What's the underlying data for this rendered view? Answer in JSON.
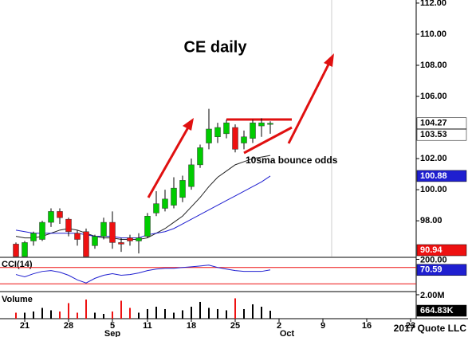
{
  "chart_data": {
    "type": "candlestick",
    "title": "CE daily",
    "annotation": "10sma bounce odds",
    "annotation_color": "#8b1a1a",
    "copyright": "2017 Quote LLC",
    "categories": [
      null,
      "21",
      null,
      null,
      null,
      null,
      "28",
      null,
      null,
      null,
      null,
      "5",
      null,
      null,
      null,
      "11",
      null,
      null,
      null,
      null,
      "18",
      null,
      null,
      null,
      null,
      "25",
      null,
      null,
      null,
      null,
      "2",
      null,
      null,
      null,
      null,
      "9",
      null,
      null,
      null,
      null,
      "16",
      null,
      null,
      null,
      null,
      "23"
    ],
    "month_labels": [
      "Sep",
      "Oct"
    ],
    "open": [
      96.5,
      95.7,
      96.7,
      96.8,
      97.9,
      98.6,
      98.1,
      97.2,
      97.3,
      96.4,
      97.0,
      97.9,
      96.6,
      96.9,
      96.7,
      97.0,
      98.5,
      98.8,
      99.0,
      99.5,
      100.2,
      101.6,
      103.0,
      103.4,
      103.6,
      104.0,
      103.0,
      103.3,
      104.1,
      104.2,
      null,
      null,
      null,
      null,
      null,
      null,
      null,
      null,
      null,
      null,
      null,
      null,
      null,
      null,
      null,
      null
    ],
    "high": [
      96.6,
      96.7,
      97.3,
      98.0,
      98.8,
      98.8,
      98.2,
      97.4,
      97.5,
      97.1,
      98.2,
      98.6,
      96.9,
      97.1,
      97.2,
      98.5,
      99.9,
      100.0,
      100.8,
      100.9,
      102.0,
      102.9,
      105.2,
      104.3,
      104.5,
      104.2,
      103.8,
      104.5,
      104.6,
      104.4,
      null,
      null,
      null,
      null,
      null,
      null,
      null,
      null,
      null,
      null,
      null,
      null,
      null,
      null,
      null,
      null
    ],
    "low": [
      95.7,
      95.7,
      96.4,
      96.7,
      97.6,
      97.8,
      97.0,
      96.4,
      95.7,
      96.2,
      96.8,
      96.2,
      96.0,
      96.4,
      95.9,
      96.9,
      98.3,
      98.6,
      98.8,
      99.2,
      100.0,
      101.4,
      102.6,
      103.0,
      103.3,
      102.4,
      102.6,
      103.0,
      103.4,
      103.6,
      null,
      null,
      null,
      null,
      null,
      null,
      null,
      null,
      null,
      null,
      null,
      null,
      null,
      null,
      null,
      null
    ],
    "close": [
      95.7,
      96.6,
      97.2,
      97.9,
      98.6,
      98.2,
      97.3,
      96.8,
      95.7,
      97.0,
      97.9,
      96.6,
      96.5,
      96.7,
      96.9,
      98.3,
      99.1,
      99.4,
      100.1,
      100.6,
      101.6,
      102.7,
      103.9,
      104.0,
      104.3,
      102.6,
      103.4,
      104.3,
      104.3,
      104.27,
      null,
      null,
      null,
      null,
      null,
      null,
      null,
      null,
      null,
      null,
      null,
      null,
      null,
      null,
      null,
      null
    ],
    "up_color": "#00cc00",
    "down_color": "#ee1111",
    "lines": [
      {
        "color": "#222222",
        "values": [
          97.0,
          96.9,
          96.9,
          97.0,
          97.2,
          97.4,
          97.5,
          97.4,
          97.2,
          97.0,
          96.9,
          96.9,
          96.8,
          96.8,
          96.8,
          96.9,
          97.2,
          97.5,
          97.9,
          98.3,
          98.9,
          99.5,
          100.2,
          100.8,
          101.2,
          101.6,
          101.8,
          102.0,
          102.1,
          102.2,
          null,
          null,
          null,
          null,
          null,
          null,
          null,
          null,
          null,
          null,
          null,
          null,
          null,
          null,
          null,
          null
        ]
      },
      {
        "color": "#1f1fd0",
        "values": [
          97.4,
          97.3,
          97.2,
          97.2,
          97.2,
          97.2,
          97.2,
          97.2,
          97.1,
          97.0,
          97.0,
          97.0,
          96.9,
          96.9,
          96.9,
          97.1,
          97.2,
          97.3,
          97.5,
          97.8,
          98.1,
          98.4,
          98.7,
          99.0,
          99.3,
          99.6,
          99.9,
          100.2,
          100.5,
          100.88,
          null,
          null,
          null,
          null,
          null,
          null,
          null,
          null,
          null,
          null,
          null,
          null,
          null,
          null,
          null,
          null
        ]
      }
    ],
    "ylim": [
      95.7,
      112.2
    ],
    "yticks": [
      {
        "value": 98,
        "label": "98.00"
      },
      {
        "value": 100,
        "label": "100.00"
      },
      {
        "value": 102,
        "label": "102.00"
      },
      {
        "value": 106,
        "label": "106.00"
      },
      {
        "value": 108,
        "label": "108.00"
      },
      {
        "value": 110,
        "label": "110.00"
      },
      {
        "value": 112,
        "label": "112.00"
      }
    ],
    "price_labels": [
      {
        "value": 104.27,
        "background": "#ffffff",
        "text_color": "#000000"
      },
      {
        "value": 103.53,
        "background": "#ffffff",
        "text_color": "#000000"
      },
      {
        "value": 100.88,
        "background": "#1f1fd0",
        "text_color": "#ffffff"
      },
      {
        "value": 90.94,
        "background": "#ee1111",
        "text_color": "#ffffff"
      }
    ],
    "cci": {
      "name": "CCI(14)",
      "color": "#1f1fd0",
      "level_color": "#ee1111",
      "values": [
        14,
        -14,
        24,
        52,
        62,
        43,
        5,
        -52,
        -90,
        -33,
        5,
        24,
        5,
        14,
        33,
        62,
        81,
        90,
        90,
        100,
        109,
        119,
        129,
        100,
        81,
        62,
        52,
        52,
        52,
        70.59,
        null,
        null,
        null,
        null,
        null,
        null,
        null,
        null,
        null,
        null,
        null,
        null,
        null,
        null,
        null,
        null
      ],
      "ylim": [
        -195,
        205
      ],
      "yticks": [
        {
          "value": 200,
          "label": "200.00"
        }
      ],
      "levels": [
        100,
        -100
      ],
      "last_label": {
        "value": 70.59,
        "background": "#1f1fd0",
        "text_color": "#ffffff"
      }
    },
    "volume": {
      "name": "Volume",
      "values": [
        500000,
        500000,
        600000,
        900000,
        700000,
        600000,
        1300000,
        500000,
        1600000,
        500000,
        400000,
        600000,
        1500000,
        900000,
        500000,
        800000,
        1000000,
        800000,
        500000,
        700000,
        1000000,
        1400000,
        900000,
        800000,
        700000,
        1700000,
        800000,
        1200000,
        1000000,
        664830,
        null,
        null,
        null,
        null,
        null,
        null,
        null,
        null,
        null,
        null,
        null,
        null,
        null,
        null,
        null,
        null
      ],
      "ylim": [
        0,
        2130000
      ],
      "yticks": [
        {
          "value": 2000000,
          "label": "2.00M"
        }
      ],
      "last_label": {
        "value": 664830,
        "label": "664.83K",
        "background": "#000000",
        "text_color": "#ffffff"
      }
    }
  }
}
